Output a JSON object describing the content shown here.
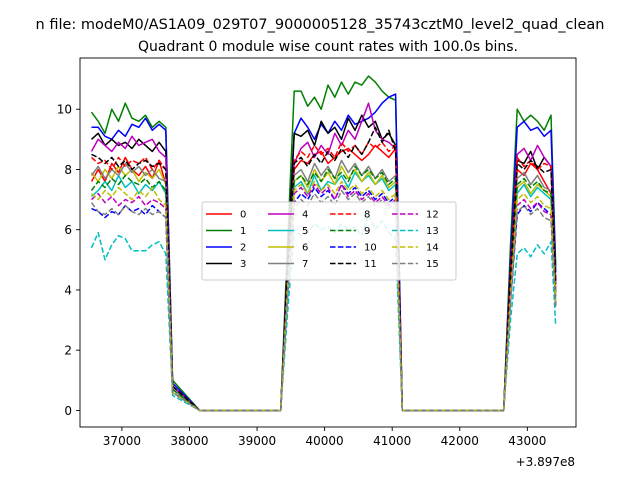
{
  "figure": {
    "suptitle": "n file: modeM0/AS1A09_029T07_9000005128_35743cztM0_level2_quad_clean",
    "title": "Quadrant 0 module wise count rates with 100.0s bins.",
    "offset_label": "+3.897e8"
  },
  "chart_data": {
    "type": "line",
    "title": "Quadrant 0 module wise count rates with 100.0s bins.",
    "xlabel": "",
    "ylabel": "",
    "x_offset": 389700000,
    "xlim": [
      36380,
      43720
    ],
    "ylim": [
      -0.55,
      11.7
    ],
    "xticks": [
      37000,
      38000,
      39000,
      40000,
      41000,
      42000,
      43000
    ],
    "yticks": [
      0,
      2,
      4,
      6,
      8,
      10
    ],
    "legend_position": "center",
    "legend_columns": 4,
    "x": [
      36550,
      36650,
      36750,
      36850,
      36950,
      37050,
      37150,
      37250,
      37350,
      37450,
      37550,
      37650,
      37750,
      38150,
      38550,
      38950,
      39150,
      39350,
      39450,
      39550,
      39650,
      39750,
      39850,
      39950,
      40050,
      40150,
      40250,
      40350,
      40450,
      40550,
      40650,
      40750,
      40850,
      40950,
      41050,
      41150,
      41550,
      41950,
      42350,
      42650,
      42750,
      42850,
      42950,
      43050,
      43150,
      43250,
      43350,
      43420
    ],
    "series": [
      {
        "name": "0",
        "color": "#ff0000",
        "dash": "solid",
        "values": [
          7.6,
          8.0,
          7.6,
          8.2,
          7.9,
          8.4,
          8.0,
          7.8,
          8.1,
          7.7,
          8.3,
          7.5,
          0.7,
          0,
          0,
          0,
          0,
          0,
          4.5,
          8.0,
          8.3,
          8.2,
          8.5,
          8.6,
          8.2,
          8.4,
          8.6,
          8.7,
          8.5,
          8.3,
          8.5,
          8.8,
          8.6,
          8.4,
          8.7,
          0,
          0,
          0,
          0,
          0,
          4.4,
          8.0,
          7.8,
          8.2,
          8.0,
          7.6,
          7.2,
          4.0
        ]
      },
      {
        "name": "1",
        "color": "#008000",
        "dash": "solid",
        "values": [
          9.9,
          9.6,
          9.2,
          10.0,
          9.6,
          10.2,
          9.7,
          9.6,
          9.8,
          9.4,
          9.6,
          9.4,
          1.0,
          0,
          0,
          0,
          0,
          0,
          5.5,
          10.6,
          10.6,
          10.1,
          10.4,
          10.0,
          10.8,
          10.4,
          10.9,
          10.5,
          10.9,
          10.8,
          11.1,
          10.9,
          10.6,
          10.4,
          10.3,
          0,
          0,
          0,
          0,
          0,
          5.5,
          10.0,
          9.6,
          9.8,
          9.6,
          9.3,
          9.8,
          4.8
        ]
      },
      {
        "name": "2",
        "color": "#0000ff",
        "dash": "solid",
        "values": [
          9.4,
          9.4,
          9.1,
          9.0,
          9.3,
          9.1,
          9.5,
          9.4,
          9.7,
          9.3,
          9.5,
          9.3,
          0.9,
          0,
          0,
          0,
          0,
          0,
          5.0,
          9.2,
          9.7,
          9.4,
          9.0,
          9.5,
          9.2,
          9.6,
          9.3,
          9.8,
          9.5,
          9.6,
          9.7,
          9.9,
          10.2,
          10.4,
          10.5,
          0,
          0,
          0,
          0,
          0,
          5.0,
          9.4,
          9.6,
          9.3,
          9.4,
          9.1,
          9.3,
          4.6
        ]
      },
      {
        "name": "3",
        "color": "#000000",
        "dash": "solid",
        "values": [
          9.0,
          9.2,
          8.8,
          9.0,
          8.8,
          8.9,
          8.7,
          9.0,
          8.8,
          8.6,
          8.9,
          8.6,
          0.8,
          0,
          0,
          0,
          0,
          0,
          4.8,
          9.2,
          9.1,
          9.3,
          8.8,
          9.6,
          9.2,
          9.4,
          9.0,
          9.7,
          9.3,
          9.8,
          9.4,
          9.6,
          9.0,
          9.2,
          8.8,
          0,
          0,
          0,
          0,
          0,
          4.7,
          8.3,
          8.2,
          8.6,
          8.0,
          8.4,
          8.1,
          4.3
        ]
      },
      {
        "name": "4",
        "color": "#bf00bf",
        "dash": "solid",
        "values": [
          8.6,
          9.0,
          8.8,
          8.6,
          8.9,
          8.7,
          9.1,
          8.8,
          8.9,
          9.0,
          8.6,
          8.4,
          0.8,
          0,
          0,
          0,
          0,
          0,
          4.5,
          8.2,
          8.7,
          8.9,
          8.4,
          8.8,
          8.5,
          9.2,
          8.8,
          9.3,
          9.0,
          9.6,
          10.2,
          9.3,
          9.0,
          8.9,
          8.7,
          0,
          0,
          0,
          0,
          0,
          4.5,
          8.5,
          8.7,
          8.3,
          8.8,
          8.4,
          8.1,
          4.2
        ]
      },
      {
        "name": "5",
        "color": "#00bfbf",
        "dash": "solid",
        "values": [
          7.1,
          7.3,
          7.6,
          7.3,
          7.8,
          7.4,
          7.6,
          7.2,
          7.5,
          7.3,
          7.6,
          7.2,
          0.7,
          0,
          0,
          0,
          0,
          0,
          4.0,
          7.4,
          7.6,
          7.2,
          7.8,
          7.3,
          7.6,
          7.5,
          7.8,
          7.4,
          7.9,
          7.6,
          7.8,
          7.5,
          7.7,
          7.3,
          7.5,
          0,
          0,
          0,
          0,
          0,
          3.9,
          7.2,
          7.5,
          7.1,
          7.4,
          7.2,
          7.0,
          3.7
        ]
      },
      {
        "name": "6",
        "color": "#bfbf00",
        "dash": "solid",
        "values": [
          7.9,
          7.6,
          8.0,
          7.7,
          8.1,
          7.8,
          8.0,
          7.6,
          7.9,
          7.7,
          8.0,
          7.5,
          0.7,
          0,
          0,
          0,
          0,
          0,
          4.2,
          7.6,
          7.8,
          7.4,
          8.0,
          7.6,
          7.9,
          7.5,
          8.1,
          7.7,
          8.0,
          7.6,
          7.9,
          7.5,
          7.8,
          7.4,
          7.6,
          0,
          0,
          0,
          0,
          0,
          4.0,
          7.4,
          7.6,
          7.2,
          7.5,
          7.3,
          7.1,
          3.8
        ]
      },
      {
        "name": "7",
        "color": "#808080",
        "dash": "solid",
        "values": [
          7.8,
          8.1,
          7.7,
          8.0,
          7.8,
          8.2,
          7.9,
          8.1,
          7.8,
          8.0,
          7.7,
          7.6,
          0.7,
          0,
          0,
          0,
          0,
          0,
          4.2,
          7.8,
          8.0,
          7.6,
          8.2,
          7.8,
          8.1,
          7.7,
          8.3,
          7.9,
          8.2,
          7.8,
          8.1,
          7.7,
          8.0,
          7.6,
          7.8,
          0,
          0,
          0,
          0,
          0,
          4.1,
          7.7,
          7.9,
          7.5,
          7.8,
          7.4,
          7.3,
          3.9
        ]
      },
      {
        "name": "8",
        "color": "#ff0000",
        "dash": "dashed",
        "values": [
          8.4,
          8.2,
          8.3,
          8.0,
          8.4,
          8.1,
          8.3,
          8.2,
          8.4,
          8.0,
          8.3,
          8.0,
          0.8,
          0,
          0,
          0,
          0,
          0,
          4.6,
          8.3,
          8.6,
          8.4,
          8.8,
          8.5,
          8.7,
          8.4,
          8.9,
          8.6,
          8.8,
          8.5,
          8.9,
          8.7,
          8.9,
          8.6,
          8.8,
          0,
          0,
          0,
          0,
          0,
          4.5,
          8.4,
          8.1,
          8.3,
          8.0,
          8.2,
          8.1,
          4.2
        ]
      },
      {
        "name": "9",
        "color": "#008000",
        "dash": "dashed",
        "values": [
          7.3,
          7.6,
          7.4,
          7.7,
          7.5,
          7.8,
          7.6,
          7.5,
          7.7,
          7.4,
          7.6,
          7.3,
          0.7,
          0,
          0,
          0,
          0,
          0,
          4.1,
          7.6,
          7.8,
          7.5,
          7.9,
          7.6,
          8.0,
          7.7,
          7.9,
          7.6,
          8.1,
          7.8,
          8.0,
          7.7,
          7.9,
          7.5,
          7.7,
          0,
          0,
          0,
          0,
          0,
          4.0,
          7.5,
          7.7,
          7.4,
          7.6,
          7.3,
          7.2,
          3.8
        ]
      },
      {
        "name": "10",
        "color": "#0000ff",
        "dash": "dashed",
        "values": [
          6.7,
          6.6,
          6.4,
          6.6,
          6.5,
          6.8,
          6.6,
          6.7,
          6.5,
          6.8,
          6.6,
          6.4,
          0.6,
          0,
          0,
          0,
          0,
          0,
          3.8,
          6.9,
          7.2,
          7.0,
          7.4,
          7.1,
          7.3,
          7.0,
          7.5,
          7.2,
          7.4,
          7.1,
          7.3,
          7.0,
          7.2,
          6.9,
          7.1,
          0,
          0,
          0,
          0,
          0,
          3.6,
          6.5,
          6.8,
          6.6,
          6.9,
          6.7,
          6.5,
          3.5
        ]
      },
      {
        "name": "11",
        "color": "#000000",
        "dash": "dashed",
        "values": [
          8.5,
          8.4,
          8.2,
          8.4,
          8.1,
          8.3,
          8.0,
          8.2,
          8.3,
          8.1,
          8.2,
          8.0,
          0.8,
          0,
          0,
          0,
          0,
          0,
          4.6,
          8.2,
          8.4,
          8.1,
          8.5,
          8.2,
          8.6,
          8.3,
          8.7,
          8.4,
          8.8,
          8.5,
          8.9,
          9.4,
          8.9,
          9.3,
          8.6,
          0,
          0,
          0,
          0,
          0,
          4.4,
          8.2,
          8.0,
          8.3,
          8.1,
          7.9,
          8.0,
          4.2
        ]
      },
      {
        "name": "12",
        "color": "#bf00bf",
        "dash": "dashed",
        "values": [
          7.0,
          7.2,
          6.9,
          7.1,
          6.8,
          7.0,
          6.9,
          7.1,
          6.8,
          7.0,
          6.9,
          6.7,
          0.6,
          0,
          0,
          0,
          0,
          0,
          3.9,
          7.2,
          7.4,
          7.1,
          7.5,
          7.2,
          7.4,
          7.0,
          7.5,
          7.1,
          7.3,
          7.0,
          7.2,
          6.9,
          7.1,
          6.8,
          7.0,
          0,
          0,
          0,
          0,
          0,
          3.7,
          6.8,
          7.0,
          6.7,
          6.9,
          6.6,
          6.5,
          3.5
        ]
      },
      {
        "name": "13",
        "color": "#00bfbf",
        "dash": "dashed",
        "values": [
          5.4,
          5.9,
          5.0,
          5.5,
          5.8,
          5.7,
          5.3,
          5.3,
          5.3,
          5.5,
          5.6,
          5.2,
          0.5,
          0,
          0,
          0,
          0,
          0,
          3.2,
          6.0,
          5.8,
          5.9,
          6.2,
          6.0,
          6.1,
          5.9,
          6.2,
          6.0,
          6.1,
          5.8,
          6.5,
          6.0,
          6.3,
          5.9,
          5.7,
          0,
          0,
          0,
          0,
          0,
          3.0,
          5.2,
          5.4,
          5.1,
          5.5,
          5.2,
          5.6,
          2.8
        ]
      },
      {
        "name": "14",
        "color": "#bfbf00",
        "dash": "dashed",
        "values": [
          7.2,
          7.0,
          7.3,
          7.1,
          7.4,
          7.2,
          7.0,
          7.3,
          7.1,
          7.4,
          7.0,
          6.8,
          0.6,
          0,
          0,
          0,
          0,
          0,
          4.0,
          7.3,
          7.5,
          7.2,
          7.6,
          7.3,
          7.5,
          7.2,
          7.6,
          7.3,
          7.5,
          7.2,
          7.4,
          7.1,
          7.3,
          7.0,
          7.2,
          0,
          0,
          0,
          0,
          0,
          3.8,
          7.0,
          7.2,
          6.9,
          7.1,
          6.8,
          6.7,
          3.6
        ]
      },
      {
        "name": "15",
        "color": "#808080",
        "dash": "dashed",
        "values": [
          6.9,
          6.6,
          6.5,
          6.7,
          6.5,
          6.8,
          6.6,
          6.5,
          6.7,
          6.5,
          6.6,
          6.4,
          0.6,
          0,
          0,
          0,
          0,
          0,
          3.8,
          6.7,
          7.0,
          6.8,
          7.2,
          6.9,
          7.1,
          6.8,
          7.3,
          7.0,
          7.2,
          6.9,
          7.1,
          6.8,
          7.0,
          6.7,
          6.9,
          0,
          0,
          0,
          0,
          0,
          3.6,
          6.6,
          6.8,
          6.5,
          6.7,
          6.4,
          6.3,
          3.4
        ]
      }
    ]
  }
}
